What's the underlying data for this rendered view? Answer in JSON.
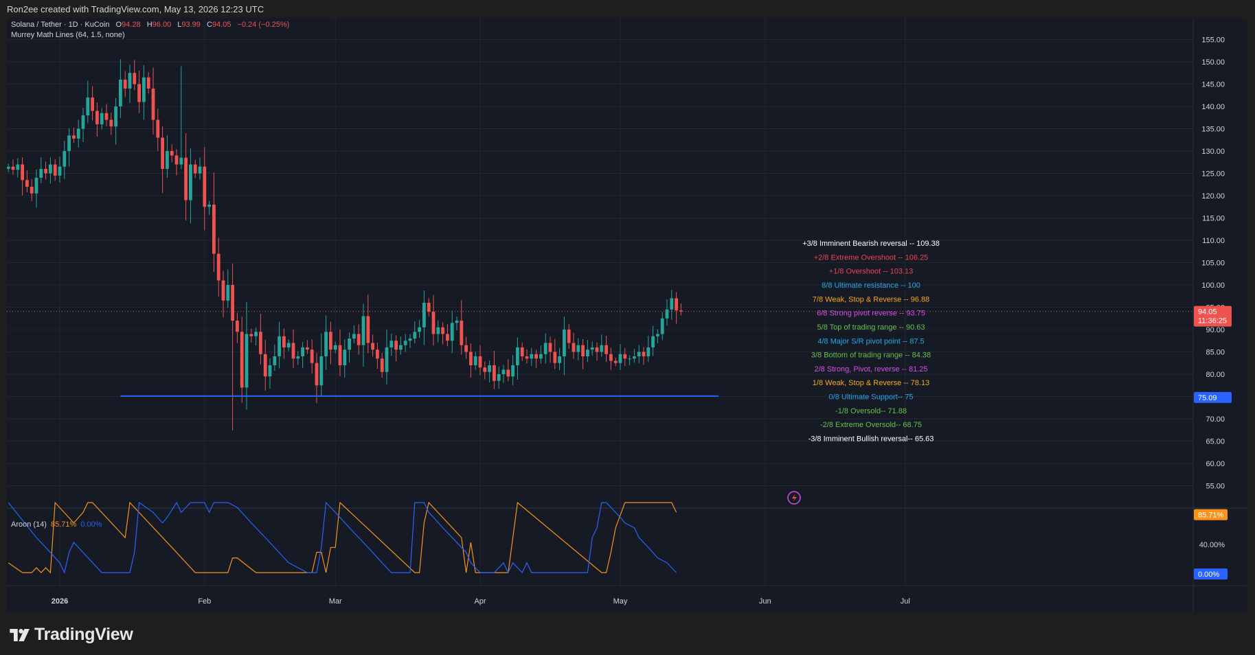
{
  "caption": "Ron2ee created with TradingView.com, May 13, 2026 12:23 UTC",
  "brand": {
    "name": "TradingView",
    "icon": "tradingview-logo-icon"
  },
  "legend": {
    "symbol": "Solana / Tether · 1D · KuCoin",
    "o_label": "O",
    "o_value": "94.28",
    "h_label": "H",
    "h_value": "96.00",
    "l_label": "L",
    "l_value": "93.99",
    "c_label": "C",
    "c_value": "94.05",
    "change": "−0.24 (−0.25%)",
    "indicator": "Murrey Math Lines (64, 1.5, none)"
  },
  "colors": {
    "background": "#161a25",
    "grid": "#242733",
    "up": "#26a69a",
    "down": "#ef5350",
    "aroon_up": "#f7931a",
    "aroon_down": "#2962ff",
    "support_line": "#2962ff"
  },
  "price_badge": {
    "price": "94.05",
    "countdown": "11:36:25"
  },
  "support_badge": "75.09",
  "aroon_badges": {
    "up": "85.71%",
    "down": "0.00%"
  },
  "event_icon": "lightning-icon",
  "chart_data": [
    {
      "type": "candlestick",
      "title": "Solana / Tether · 1D · KuCoin",
      "ylim": [
        50,
        157
      ],
      "y_ticks": [
        "155.00",
        "150.00",
        "145.00",
        "140.00",
        "135.00",
        "130.00",
        "125.00",
        "120.00",
        "115.00",
        "110.00",
        "105.00",
        "100.00",
        "95.00",
        "90.00",
        "85.00",
        "80.00",
        "75.00",
        "70.00",
        "65.00",
        "60.00",
        "55.00"
      ],
      "x_labels": [
        {
          "label": "2026",
          "day": 0
        },
        {
          "label": "Feb",
          "day": 31
        },
        {
          "label": "Mar",
          "day": 59
        },
        {
          "label": "Apr",
          "day": 90
        },
        {
          "label": "May",
          "day": 120
        },
        {
          "label": "Jun",
          "day": 151
        },
        {
          "label": "Jul",
          "day": 181
        }
      ],
      "first_day": -11,
      "last_day": 132,
      "closes": [
        126.5,
        125.8,
        127.0,
        123.5,
        122.0,
        120.5,
        124.0,
        126.0,
        125.0,
        127.0,
        124.5,
        126.5,
        130.0,
        133.5,
        132.8,
        135.0,
        138.0,
        142.0,
        139.0,
        136.0,
        138.5,
        137.0,
        135.5,
        140.0,
        146.0,
        144.0,
        147.5,
        145.0,
        141.0,
        146.5,
        144.0,
        137.0,
        133.0,
        126.0,
        130.0,
        129.0,
        127.0,
        128.5,
        119.0,
        127.0,
        125.0,
        126.5,
        117.5,
        118.0,
        107.0,
        101.0,
        96.5,
        100.0,
        92.0,
        89.5,
        77.0,
        89.0,
        88.5,
        89.5,
        84.5,
        79.5,
        82.0,
        84.0,
        88.5,
        86.0,
        87.0,
        83.5,
        84.0,
        86.0,
        85.5,
        82.5,
        77.5,
        84.0,
        89.5,
        85.5,
        86.5,
        82.0,
        85.5,
        88.0,
        89.0,
        86.5,
        93.0,
        87.0,
        85.5,
        83.5,
        80.5,
        86.0,
        87.5,
        85.5,
        86.5,
        87.5,
        88.0,
        89.5,
        90.5,
        96.0,
        94.0,
        89.0,
        90.5,
        89.0,
        87.5,
        91.5,
        92.0,
        86.5,
        85.0,
        82.0,
        84.0,
        81.5,
        80.5,
        82.0,
        78.5,
        80.0,
        81.0,
        79.5,
        82.0,
        86.0,
        84.0,
        83.5,
        84.5,
        83.5,
        84.5,
        87.0,
        85.0,
        82.5,
        84.0,
        90.0,
        87.0,
        85.0,
        86.5,
        84.0,
        85.5,
        86.0,
        85.0,
        86.5,
        84.5,
        83.0,
        82.5,
        84.5,
        83.5,
        83.5,
        84.0,
        85.0,
        84.0,
        86.0,
        88.5,
        89.0,
        92.5,
        94.5,
        97.0,
        94.3,
        94.05
      ],
      "candles_open": 126.0,
      "lines": [
        {
          "name": "+3/8 Imminent Bearish reversal --  109.38",
          "value": 109.38,
          "color": "#ffffff"
        },
        {
          "name": "+2/8 Extreme Overshoot --  106.25",
          "value": 106.25,
          "color": "#f0444e"
        },
        {
          "name": "+1/8 Overshoot --  103.13",
          "value": 103.13,
          "color": "#f0444e"
        },
        {
          "name": "8/8 Ultimate resistance --  100",
          "value": 100,
          "color": "#28a8e8"
        },
        {
          "name": "7/8 Weak, Stop & Reverse --  96.88",
          "value": 96.88,
          "color": "#f5a81c"
        },
        {
          "name": "6/8 Strong pivot reverse --  93.75",
          "value": 93.75,
          "color": "#d650e8"
        },
        {
          "name": "5/8 Top of trading range --  90.63",
          "value": 90.63,
          "color": "#68c24a"
        },
        {
          "name": "4/8 Major S/R pivot point --  87.5",
          "value": 87.5,
          "color": "#28a8e8"
        },
        {
          "name": "3/8 Bottom of trading range --  84.38",
          "value": 84.38,
          "color": "#68c24a"
        },
        {
          "name": "2/8 Strong, Pivot, reverse --  81.25",
          "value": 81.25,
          "color": "#d650e8"
        },
        {
          "name": "1/8 Weak, Stop & Reverse --  78.13",
          "value": 78.13,
          "color": "#f5a81c"
        },
        {
          "name": "0/8 Ultimate Support--  75",
          "value": 75,
          "color": "#28a8e8"
        },
        {
          "name": "-1/8 Oversold--  71.88",
          "value": 71.88,
          "color": "#68c24a"
        },
        {
          "name": "-2/8 Extreme Oversold--  68.75",
          "value": 68.75,
          "color": "#68c24a"
        },
        {
          "name": "-3/8 Imminent Bullish reversal--  65.63",
          "value": 65.63,
          "color": "#ffffff"
        }
      ],
      "support_line": {
        "value": 75.09,
        "start_day": 13,
        "end_day": 141
      },
      "last_price": 94.05
    },
    {
      "type": "line",
      "title": "Aroon (14)",
      "series": [
        {
          "name": "85.71%",
          "color": "#f7931a",
          "values": [
            [
              -11,
              14
            ],
            [
              -8,
              0
            ],
            [
              -6,
              0
            ],
            [
              -5,
              7
            ],
            [
              -4,
              0
            ],
            [
              -3,
              7
            ],
            [
              -2,
              0
            ],
            [
              -1,
              100
            ],
            [
              3,
              71
            ],
            [
              5,
              86
            ],
            [
              6,
              100
            ],
            [
              7,
              100
            ],
            [
              14,
              50
            ],
            [
              15,
              100
            ],
            [
              24,
              36
            ],
            [
              29,
              0
            ],
            [
              36,
              0
            ],
            [
              37,
              21
            ],
            [
              38,
              21
            ],
            [
              42,
              0
            ],
            [
              46,
              0
            ],
            [
              49,
              0
            ],
            [
              54,
              0
            ],
            [
              55,
              29
            ],
            [
              56,
              29
            ],
            [
              57,
              0
            ],
            [
              58,
              36
            ],
            [
              59,
              36
            ],
            [
              60,
              100
            ],
            [
              76,
              0
            ],
            [
              77,
              0
            ],
            [
              78,
              71
            ],
            [
              79,
              100
            ],
            [
              86,
              50
            ],
            [
              87,
              0
            ],
            [
              88,
              43
            ],
            [
              89,
              0
            ],
            [
              96,
              0
            ],
            [
              97,
              50
            ],
            [
              98,
              100
            ],
            [
              116,
              0
            ],
            [
              117,
              0
            ],
            [
              118,
              29
            ],
            [
              119,
              64
            ],
            [
              121,
              100
            ],
            [
              127,
              100
            ],
            [
              128,
              100
            ],
            [
              131,
              100
            ],
            [
              132,
              86
            ]
          ]
        },
        {
          "name": "0.00%",
          "color": "#2962ff",
          "values": [
            [
              -11,
              100
            ],
            [
              -5,
              50
            ],
            [
              -3,
              36
            ],
            [
              0,
              14
            ],
            [
              1,
              0
            ],
            [
              2,
              29
            ],
            [
              3,
              43
            ],
            [
              9,
              0
            ],
            [
              11,
              0
            ],
            [
              12,
              0
            ],
            [
              15,
              0
            ],
            [
              16,
              29
            ],
            [
              17,
              100
            ],
            [
              20,
              86
            ],
            [
              22,
              71
            ],
            [
              23,
              79
            ],
            [
              25,
              100
            ],
            [
              26,
              86
            ],
            [
              27,
              93
            ],
            [
              28,
              100
            ],
            [
              31,
              100
            ],
            [
              32,
              86
            ],
            [
              33,
              100
            ],
            [
              36,
              100
            ],
            [
              38,
              93
            ],
            [
              41,
              71
            ],
            [
              44,
              50
            ],
            [
              49,
              14
            ],
            [
              53,
              0
            ],
            [
              54,
              0
            ],
            [
              55,
              0
            ],
            [
              56,
              36
            ],
            [
              57,
              100
            ],
            [
              59,
              86
            ],
            [
              63,
              57
            ],
            [
              66,
              36
            ],
            [
              69,
              14
            ],
            [
              71,
              0
            ],
            [
              72,
              0
            ],
            [
              73,
              0
            ],
            [
              75,
              0
            ],
            [
              76,
              100
            ],
            [
              78,
              100
            ],
            [
              79,
              86
            ],
            [
              80,
              79
            ],
            [
              82,
              64
            ],
            [
              87,
              29
            ],
            [
              88,
              14
            ],
            [
              89,
              7
            ],
            [
              90,
              0
            ],
            [
              91,
              0
            ],
            [
              93,
              0
            ],
            [
              95,
              14
            ],
            [
              96,
              0
            ],
            [
              97,
              14
            ],
            [
              98,
              7
            ],
            [
              99,
              0
            ],
            [
              100,
              14
            ],
            [
              101,
              0
            ],
            [
              105,
              0
            ],
            [
              111,
              0
            ],
            [
              113,
              0
            ],
            [
              114,
              50
            ],
            [
              115,
              64
            ],
            [
              116,
              100
            ],
            [
              117,
              100
            ],
            [
              119,
              86
            ],
            [
              120,
              79
            ],
            [
              121,
              71
            ],
            [
              123,
              64
            ],
            [
              124,
              50
            ],
            [
              126,
              36
            ],
            [
              128,
              21
            ],
            [
              130,
              14
            ],
            [
              132,
              0
            ]
          ]
        }
      ],
      "ylim": [
        0,
        100
      ],
      "y_ticks": [
        "80.00%",
        "40.00%"
      ]
    }
  ]
}
